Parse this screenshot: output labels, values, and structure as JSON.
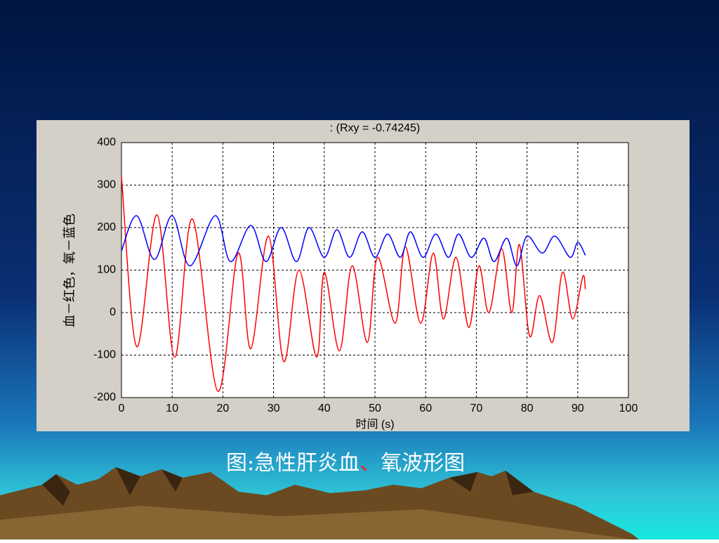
{
  "chart_data": {
    "type": "line",
    "title": ":       (Rxy = -0.74245)",
    "xlabel": "时间 (s)",
    "ylabel": "血－红色，氧－蓝色",
    "xlim": [
      0,
      100
    ],
    "xticks": [
      0,
      10,
      20,
      30,
      40,
      50,
      60,
      70,
      80,
      90,
      100
    ],
    "ylim": [
      -200,
      400
    ],
    "yticks": [
      -200,
      -100,
      0,
      100,
      200,
      300,
      400
    ],
    "grid": true,
    "series": [
      {
        "color": "#ff0000",
        "x": [
          0,
          3,
          7,
          10.5,
          14,
          19,
          23,
          25.5,
          29,
          32,
          35,
          38.5,
          40,
          43,
          45.5,
          48.5,
          50.5,
          54,
          56,
          59,
          61.5,
          63.5,
          66,
          68.5,
          70.5,
          72.5,
          75,
          77,
          78.5,
          80.5,
          82.5,
          85,
          87,
          89,
          91,
          91.5
        ],
        "values": [
          320,
          -80,
          230,
          -105,
          220,
          -185,
          140,
          -85,
          180,
          -115,
          100,
          -105,
          95,
          -90,
          110,
          -70,
          130,
          -25,
          155,
          -25,
          140,
          -15,
          130,
          -35,
          110,
          0,
          150,
          0,
          160,
          -55,
          40,
          -70,
          95,
          -15,
          85,
          55
        ]
      },
      {
        "color": "#0000ff",
        "x": [
          0,
          3,
          6.5,
          10,
          13.5,
          18.5,
          21.5,
          25.5,
          28.5,
          31.5,
          34.5,
          37,
          40,
          42.5,
          45,
          47.5,
          50,
          52.5,
          55,
          57,
          59.5,
          62,
          64.5,
          66.5,
          69,
          71.5,
          73.5,
          76,
          78,
          80,
          83,
          85.5,
          88.5,
          90,
          91.5
        ],
        "values": [
          145,
          228,
          125,
          228,
          110,
          228,
          120,
          205,
          120,
          200,
          120,
          200,
          130,
          195,
          130,
          190,
          130,
          185,
          130,
          190,
          130,
          185,
          130,
          185,
          130,
          175,
          120,
          175,
          110,
          180,
          140,
          180,
          130,
          165,
          135
        ]
      }
    ]
  },
  "caption": [
    "图:急性肝炎血",
    "、",
    "氧波形图"
  ]
}
